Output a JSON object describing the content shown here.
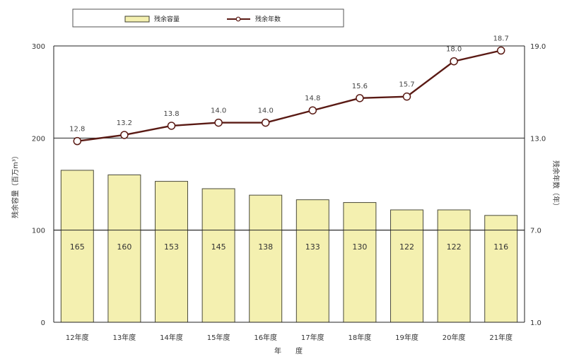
{
  "chart_data": {
    "type": "bar+line",
    "categories": [
      "12年度",
      "13年度",
      "14年度",
      "15年度",
      "16年度",
      "17年度",
      "18年度",
      "19年度",
      "20年度",
      "21年度"
    ],
    "series": [
      {
        "name": "残余容量",
        "type": "bar",
        "axis": "left",
        "values": [
          165,
          160,
          153,
          145,
          138,
          133,
          130,
          122,
          122,
          116
        ],
        "color": "#f4f0b0",
        "stroke": "#4a4a3a"
      },
      {
        "name": "残余年数",
        "type": "line",
        "axis": "right",
        "values": [
          12.8,
          13.2,
          13.8,
          14.0,
          14.0,
          14.8,
          15.6,
          15.7,
          18.0,
          18.7
        ],
        "color": "#5a1a14"
      }
    ],
    "y_left": {
      "label": "残余容量（百万m³）",
      "range": [
        0,
        300
      ],
      "ticks": [
        "0",
        "100",
        "200",
        "300"
      ]
    },
    "y_right": {
      "label": "残余年数（年）",
      "range": [
        1.0,
        19.0
      ],
      "ticks": [
        "1.0",
        "7.0",
        "13.0",
        "19.0"
      ]
    },
    "xlabel": "年　　度",
    "grid": "horizontal",
    "legend_position": "top-left"
  }
}
